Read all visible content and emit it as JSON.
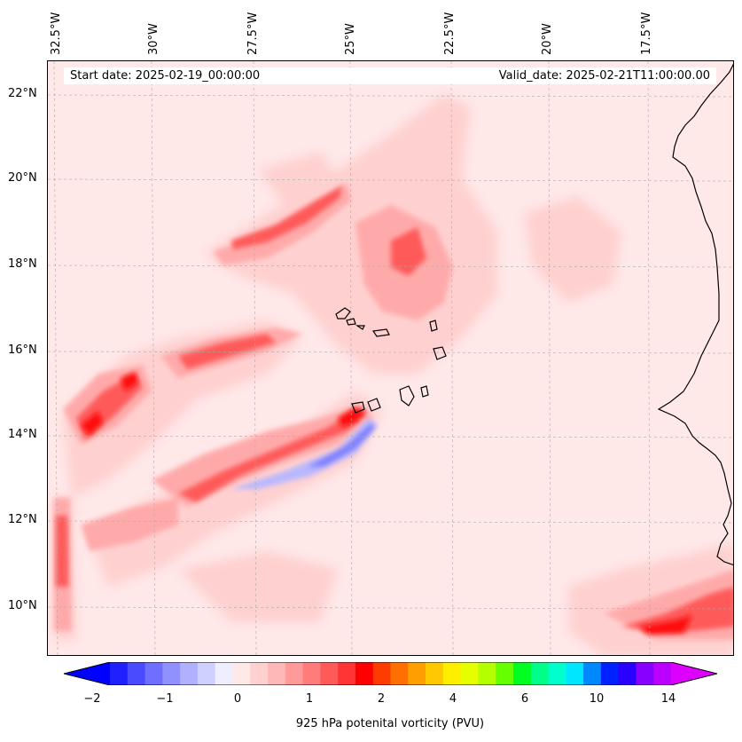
{
  "map": {
    "lon_labels": [
      "32.5°W",
      "30°W",
      "27.5°W",
      "25°W",
      "22.5°W",
      "20°W",
      "17.5°W"
    ],
    "lat_labels": [
      "22°N",
      "20°N",
      "18°N",
      "16°N",
      "14°N",
      "12°N",
      "10°N"
    ],
    "start_date": "Start date: 2025-02-19_00:00:00",
    "valid_date": "Valid_date: 2025-02-21T11:00:00.00",
    "background_color": "#ffe8e8",
    "coastline_color": "#000000"
  },
  "colorbar": {
    "title": "925 hPa potenital vorticity (PVU)",
    "tick_labels": [
      "−2",
      "−1",
      "0",
      "1",
      "2",
      "4",
      "6",
      "10",
      "14"
    ],
    "colors": [
      "#0000ff",
      "#2020ff",
      "#4a4aff",
      "#6e6eff",
      "#9090ff",
      "#b0b0ff",
      "#d0d0ff",
      "#eeeeff",
      "#ffe8e8",
      "#ffd0d0",
      "#ffb8b8",
      "#ff9a9a",
      "#ff7c7c",
      "#ff5a5a",
      "#ff3434",
      "#ff0000",
      "#ff3c00",
      "#ff7000",
      "#ff9e00",
      "#ffc800",
      "#ffee00",
      "#e6ff00",
      "#b4ff00",
      "#66ff00",
      "#00ff20",
      "#00ff88",
      "#00ffcc",
      "#00e6ff",
      "#0088ff",
      "#0022ff",
      "#2a00ff",
      "#8800ff",
      "#bb00ff",
      "#dd00ff"
    ]
  }
}
